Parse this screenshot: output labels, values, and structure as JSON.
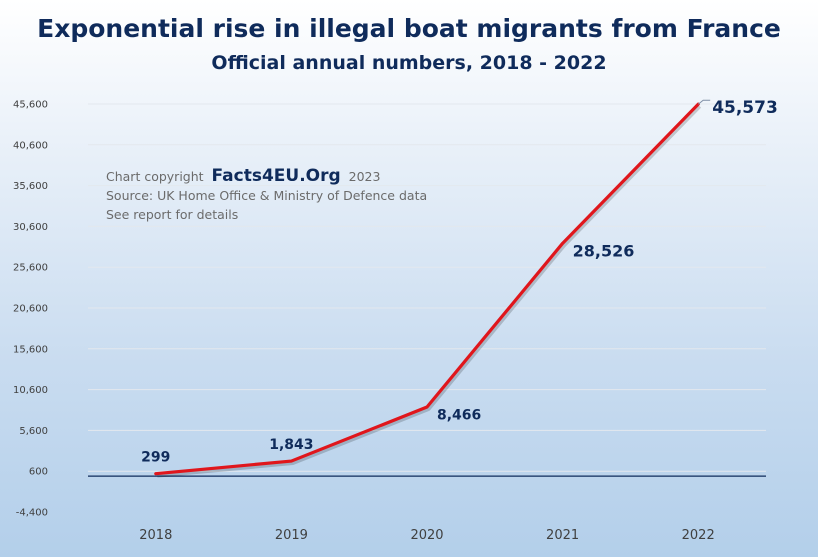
{
  "chart_data": {
    "type": "line",
    "title": "Exponential rise in illegal boat migrants from France",
    "subtitle": "Official annual numbers, 2018 - 2022",
    "xlabel": "",
    "ylabel": "",
    "categories": [
      "2018",
      "2019",
      "2020",
      "2021",
      "2022"
    ],
    "series": [
      {
        "name": "Illegal boat migrants",
        "values": [
          299,
          1843,
          8466,
          28526,
          45573
        ],
        "color": "#e0161c"
      }
    ],
    "data_labels": [
      "299",
      "1,843",
      "8,466",
      "28,526",
      "45,573"
    ],
    "y_ticks": [
      -4400,
      600,
      5600,
      10600,
      15600,
      20600,
      25600,
      30600,
      35600,
      40600,
      45600
    ],
    "y_tick_labels": [
      "-4,400",
      "600",
      "5,600",
      "10,600",
      "15,600",
      "20,600",
      "25,600",
      "30,600",
      "35,600",
      "40,600",
      "45,600"
    ],
    "ylim": [
      -4400,
      45600
    ],
    "grid": true,
    "legend": "none",
    "annotations": {
      "copyright_prefix": "Chart copyright",
      "brand": "Facts4EU.Org",
      "year": "2023",
      "source": "Source: UK Home Office & Ministry of Defence data",
      "details": "See report for details"
    },
    "colors": {
      "title": "#0f2b5b",
      "line": "#e0161c",
      "baseline": "#0f2b5b",
      "grid": "#e3e8ee"
    }
  }
}
